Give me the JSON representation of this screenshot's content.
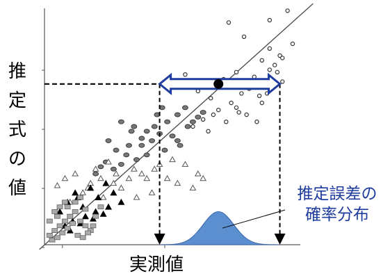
{
  "chart_data": {
    "type": "scatter",
    "ylabel": "推定式の値",
    "ylabel_chars": [
      "推",
      "定",
      "式",
      "の",
      "値"
    ],
    "xlabel": "実測値",
    "annotation_lines": [
      "推定誤差の",
      "確率分布"
    ],
    "xlim": [
      0,
      100
    ],
    "ylim": [
      0,
      100
    ],
    "grid": false,
    "legend": "none",
    "colors": {
      "axis": "#555555",
      "arrow": "#1f3d9e",
      "distribution_fill": "#5b8fd0",
      "annotation_text": "#1f3d9e",
      "marker_dark": "#222222",
      "marker_gray": "#777777",
      "marker_light": "#aaaaaa"
    },
    "regression_line": {
      "x": [
        -2,
        105
      ],
      "y": [
        -2,
        102
      ]
    },
    "highlight_point": {
      "x": 68,
      "y": 68
    },
    "estimate_interval": {
      "y": 68,
      "x_range": [
        45,
        92
      ]
    },
    "drop_lines_x": [
      45,
      92
    ],
    "error_distribution": {
      "mean": 68,
      "sd": 6,
      "height": 14
    },
    "series": [
      {
        "marker": "circle-open",
        "x": [
          95,
          88,
          72,
          78,
          88,
          92,
          85,
          90,
          75,
          82,
          86,
          55,
          70,
          60,
          65,
          80,
          84,
          91,
          88,
          93,
          77,
          73,
          68,
          66,
          62,
          58,
          75,
          79,
          83,
          85,
          87,
          89,
          71,
          76,
          64,
          93,
          97
        ],
        "y": [
          99,
          95,
          94,
          88,
          83,
          80,
          78,
          76,
          73,
          71,
          68,
          72,
          70,
          65,
          62,
          66,
          63,
          73,
          74,
          79,
          64,
          60,
          57,
          55,
          53,
          50,
          58,
          55,
          52,
          60,
          64,
          67,
          52,
          56,
          48,
          69,
          85
        ]
      },
      {
        "marker": "striped-circle",
        "x": [
          30,
          35,
          40,
          45,
          50,
          42,
          48,
          52,
          38,
          33,
          28,
          25,
          32,
          44,
          56,
          55,
          60,
          47,
          53,
          40,
          36,
          30,
          27,
          24,
          22,
          20,
          34,
          43,
          58,
          62,
          38,
          46,
          52
        ],
        "y": [
          52,
          50,
          48,
          47,
          46,
          44,
          52,
          55,
          45,
          42,
          40,
          44,
          38,
          55,
          50,
          58,
          54,
          40,
          42,
          38,
          36,
          34,
          32,
          35,
          33,
          30,
          48,
          50,
          52,
          56,
          42,
          58,
          44
        ]
      },
      {
        "marker": "triangle-open",
        "x": [
          5,
          8,
          12,
          15,
          18,
          20,
          22,
          25,
          28,
          30,
          35,
          40,
          45,
          50,
          55,
          10,
          14,
          17,
          23,
          27,
          33,
          38,
          43,
          48,
          52,
          58,
          60,
          62,
          42,
          36
        ],
        "y": [
          25,
          28,
          30,
          22,
          26,
          32,
          28,
          35,
          30,
          24,
          32,
          28,
          34,
          36,
          34,
          18,
          20,
          24,
          20,
          26,
          28,
          30,
          32,
          28,
          26,
          24,
          30,
          28,
          22,
          20
        ]
      },
      {
        "marker": "triangle-filled",
        "x": [
          6,
          9,
          12,
          15,
          18,
          21,
          24,
          27,
          30,
          11,
          16,
          20,
          25,
          8,
          14,
          19,
          23,
          10,
          13
        ],
        "y": [
          14,
          18,
          22,
          16,
          24,
          20,
          26,
          22,
          18,
          10,
          12,
          14,
          16,
          8,
          9,
          11,
          13,
          6,
          20
        ]
      },
      {
        "marker": "square-gray",
        "x": [
          2,
          4,
          6,
          8,
          10,
          12,
          14,
          16,
          18,
          20,
          22,
          3,
          5,
          7,
          9,
          11,
          13,
          15,
          17,
          19,
          4,
          6,
          8,
          10,
          12,
          14,
          16,
          2,
          5,
          9
        ],
        "y": [
          4,
          6,
          8,
          10,
          12,
          14,
          10,
          8,
          6,
          12,
          16,
          2,
          3,
          5,
          7,
          9,
          4,
          3,
          5,
          8,
          14,
          16,
          18,
          12,
          18,
          20,
          15,
          10,
          12,
          16
        ]
      }
    ]
  }
}
